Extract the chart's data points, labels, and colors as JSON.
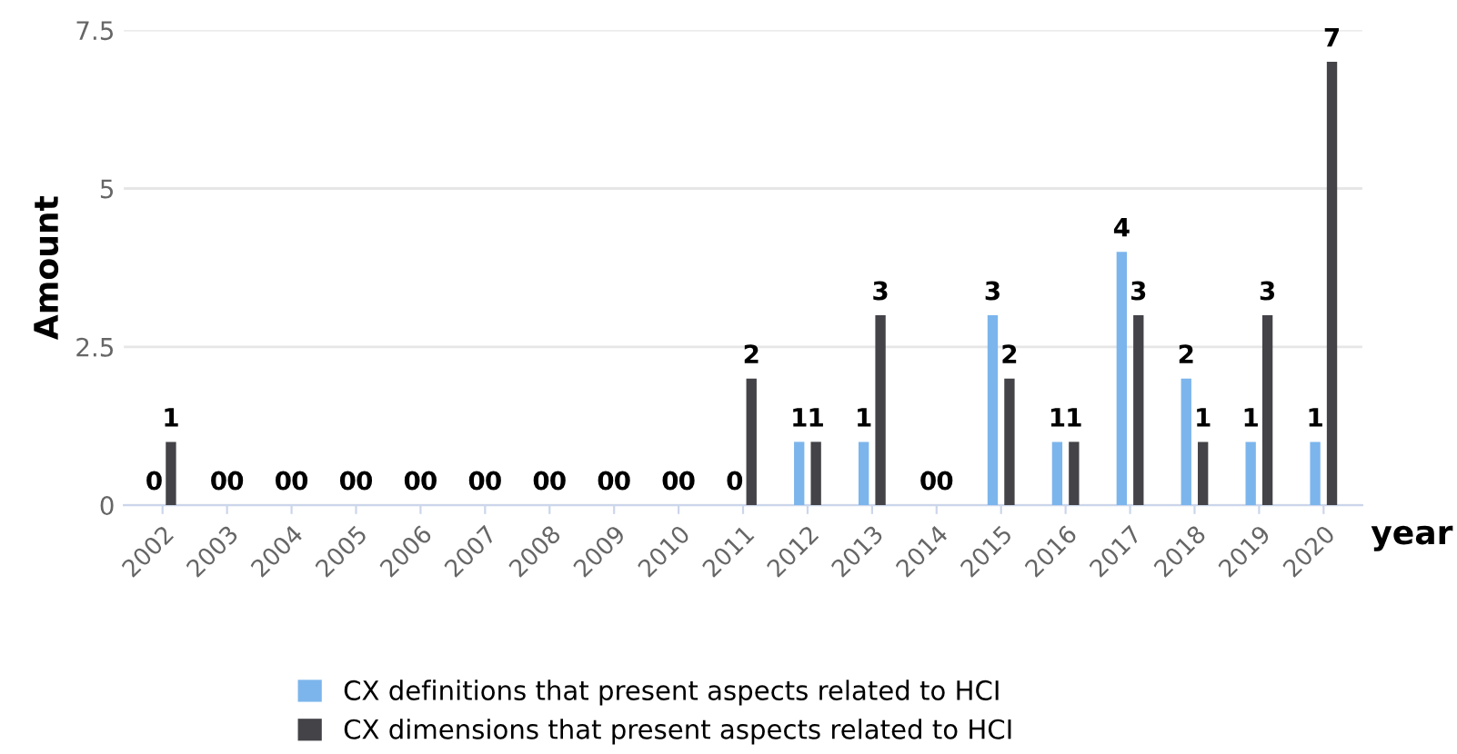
{
  "chart_data": {
    "type": "bar",
    "ylabel": "Amount",
    "xlabel": "year",
    "categories": [
      "2002",
      "2003",
      "2004",
      "2005",
      "2006",
      "2007",
      "2008",
      "2009",
      "2010",
      "2011",
      "2012",
      "2013",
      "2014",
      "2015",
      "2016",
      "2017",
      "2018",
      "2019",
      "2020"
    ],
    "series": [
      {
        "name": "CX definitions that present aspects related to HCI",
        "color": "#7cb5ec",
        "values": [
          0,
          0,
          0,
          0,
          0,
          0,
          0,
          0,
          0,
          0,
          1,
          1,
          0,
          3,
          1,
          4,
          2,
          1,
          1
        ]
      },
      {
        "name": "CX dimensions that present aspects related to HCI",
        "color": "#434348",
        "values": [
          1,
          0,
          0,
          0,
          0,
          0,
          0,
          0,
          0,
          2,
          1,
          3,
          0,
          2,
          1,
          3,
          1,
          3,
          7
        ]
      }
    ],
    "ylim": [
      0,
      7.5
    ],
    "yticks": [
      0,
      2.5,
      5,
      7.5
    ],
    "grid": "y",
    "legend": "bottom",
    "data_labels": true
  }
}
